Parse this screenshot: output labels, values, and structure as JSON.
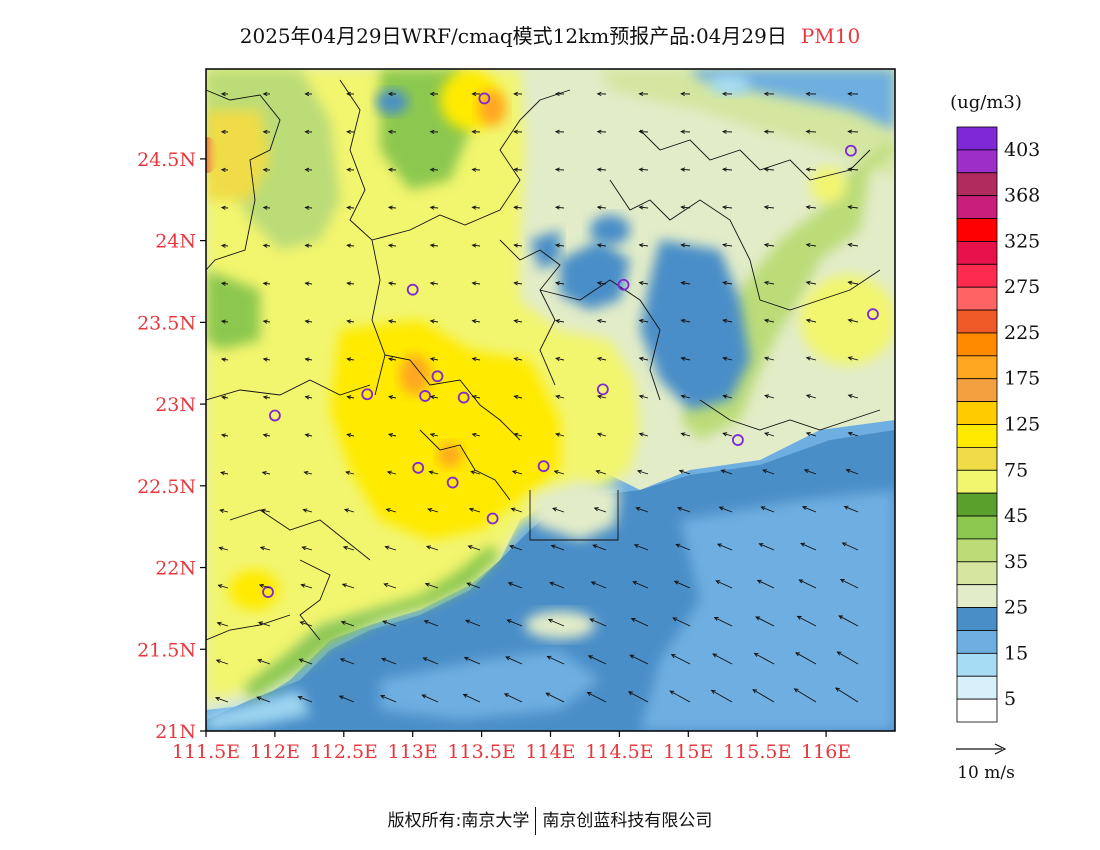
{
  "title": {
    "text": "2025年04月29日WRF/cmaq模式12km预报产品:04月29日",
    "pollutant": "PM10",
    "pollutant_color": "#e8383d"
  },
  "map": {
    "lat_labels": [
      "24.5N",
      "24N",
      "23.5N",
      "23N",
      "22.5N",
      "22N",
      "21.5N",
      "21N"
    ],
    "lon_labels": [
      "111.5E",
      "112E",
      "112.5E",
      "113E",
      "113.5E",
      "114E",
      "114.5E",
      "115E",
      "115.5E",
      "116E"
    ],
    "lat_range": [
      21.0,
      25.05
    ],
    "lon_range": [
      111.5,
      116.5
    ],
    "axis_label_color": "#e8383d",
    "stations": [
      {
        "lon": 113.52,
        "lat": 24.87
      },
      {
        "lon": 116.18,
        "lat": 24.55
      },
      {
        "lon": 113.0,
        "lat": 23.7
      },
      {
        "lon": 114.53,
        "lat": 23.73
      },
      {
        "lon": 116.34,
        "lat": 23.55
      },
      {
        "lon": 113.18,
        "lat": 23.17
      },
      {
        "lon": 113.09,
        "lat": 23.05
      },
      {
        "lon": 112.67,
        "lat": 23.06
      },
      {
        "lon": 113.37,
        "lat": 23.04
      },
      {
        "lon": 114.38,
        "lat": 23.09
      },
      {
        "lon": 112.0,
        "lat": 22.93
      },
      {
        "lon": 115.36,
        "lat": 22.78
      },
      {
        "lon": 113.04,
        "lat": 22.61
      },
      {
        "lon": 113.95,
        "lat": 22.62
      },
      {
        "lon": 113.29,
        "lat": 22.52
      },
      {
        "lon": 113.58,
        "lat": 22.3
      },
      {
        "lon": 111.95,
        "lat": 21.85
      }
    ]
  },
  "legend": {
    "unit": "(ug/m3)",
    "labels": [
      "403",
      "368",
      "325",
      "275",
      "225",
      "175",
      "125",
      "75",
      "45",
      "35",
      "25",
      "15",
      "5"
    ],
    "colors": [
      "#7e28d6",
      "#9b2fc8",
      "#b02c5c",
      "#c8207a",
      "#ff0000",
      "#e8124a",
      "#ff2a50",
      "#ff6464",
      "#f05a28",
      "#ff8a00",
      "#ffa620",
      "#f5a040",
      "#ffcc00",
      "#ffea00",
      "#f0dc46",
      "#f2f56e",
      "#5aa02d",
      "#8cc850",
      "#bcdc78",
      "#d4e6a0",
      "#e2ecc8",
      "#4a8ec8",
      "#6eaee0",
      "#a6dcf4",
      "#d8f0fa",
      "#ffffff"
    ]
  },
  "wind_legend": {
    "label": "10  m/s"
  },
  "footer": {
    "left": "版权所有:南京大学",
    "right": "南京创蓝科技有限公司"
  }
}
